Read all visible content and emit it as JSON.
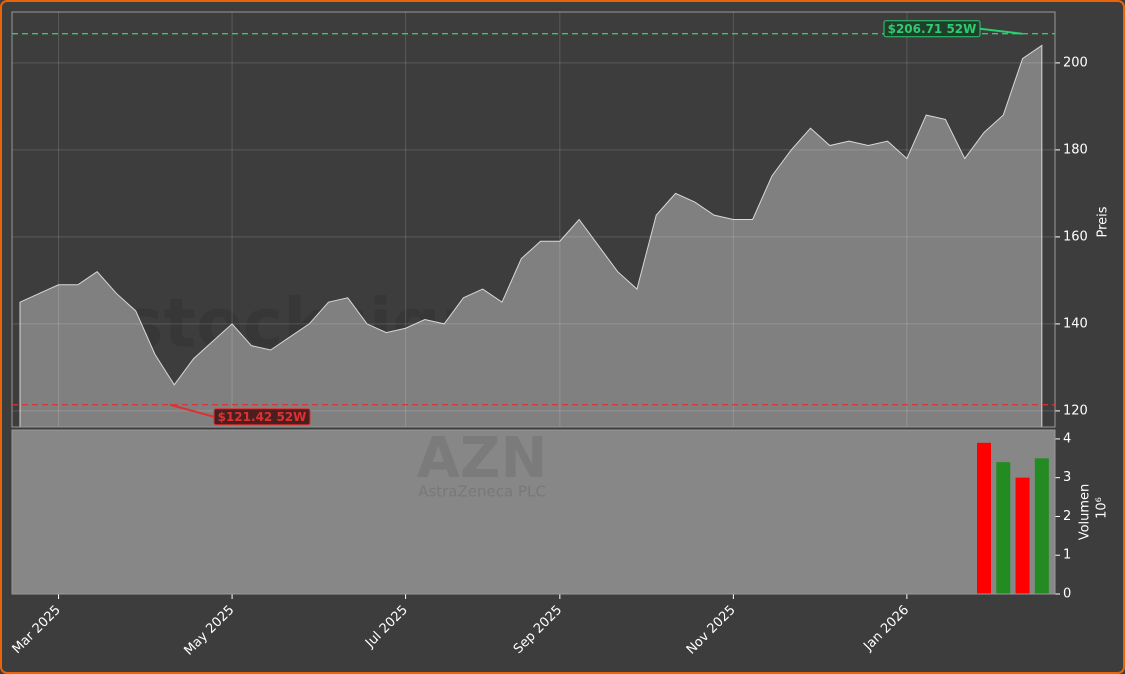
{
  "chart_data": [
    {
      "type": "area",
      "watermark": "stocksignale.trade",
      "ticker": "AZN",
      "company": "AstraZeneca PLC",
      "y_label": "Preis",
      "categories": [
        null,
        null,
        "Mar 2025",
        null,
        null,
        null,
        null,
        null,
        null,
        null,
        null,
        "May 2025",
        null,
        null,
        null,
        null,
        null,
        null,
        null,
        null,
        "Jul 2025",
        null,
        null,
        null,
        null,
        null,
        null,
        null,
        "Sep 2025",
        null,
        null,
        null,
        null,
        null,
        null,
        null,
        null,
        "Nov 2025",
        null,
        null,
        null,
        null,
        null,
        null,
        null,
        null,
        "Jan 2026",
        null,
        null,
        null,
        null,
        null,
        null,
        null
      ],
      "series": [
        {
          "name": "AZN",
          "color": "#808080",
          "values": [
            145,
            147,
            149,
            149,
            152,
            147,
            143,
            133,
            126,
            132,
            136,
            140,
            135,
            134,
            137,
            140,
            145,
            146,
            140,
            138,
            139,
            141,
            140,
            146,
            148,
            145,
            155,
            159,
            159,
            164,
            158,
            152,
            148,
            165,
            170,
            168,
            165,
            164,
            164,
            174,
            180,
            185,
            181,
            182,
            181,
            182,
            178,
            188,
            187,
            178,
            184,
            188,
            201,
            204
          ]
        }
      ],
      "ylim": [
        116.3,
        211.7
      ],
      "yticks": [
        120,
        140,
        160,
        180,
        200
      ],
      "grid": true,
      "annotations": [
        {
          "value": 206.71,
          "label": "$206.71 52W",
          "color": "#2ecc71"
        },
        {
          "value": 121.42,
          "label": "$121.42 52W",
          "color": "#e03030"
        }
      ]
    },
    {
      "type": "bar",
      "y_label": "Volumen",
      "scale_label": "10⁶",
      "categories": [
        null,
        null,
        "Mar 2025",
        null,
        null,
        null,
        null,
        null,
        null,
        null,
        null,
        "May 2025",
        null,
        null,
        null,
        null,
        null,
        null,
        null,
        null,
        "Jul 2025",
        null,
        null,
        null,
        null,
        null,
        null,
        null,
        "Sep 2025",
        null,
        null,
        null,
        null,
        null,
        null,
        null,
        null,
        "Nov 2025",
        null,
        null,
        null,
        null,
        null,
        null,
        null,
        null,
        "Jan 2026",
        null,
        null,
        null,
        null,
        null,
        null,
        null
      ],
      "series": [
        {
          "name": "Volumen",
          "values": [
            0,
            0,
            0,
            0,
            0,
            0,
            0,
            0,
            0,
            0,
            0,
            0,
            0,
            0,
            0,
            0,
            0,
            0,
            0,
            0,
            0,
            0,
            0,
            0,
            0,
            0,
            0,
            0,
            0,
            0,
            0,
            0,
            0,
            0,
            0,
            0,
            0,
            0,
            0,
            0,
            0,
            0,
            0,
            0,
            0,
            0,
            0,
            0,
            0,
            0,
            3.9,
            3.4,
            3.0,
            3.5
          ],
          "colors": [
            "#ff0000",
            "#ff0000",
            "#ff0000",
            "#ff0000",
            "#ff0000",
            "#ff0000",
            "#ff0000",
            "#ff0000",
            "#ff0000",
            "#ff0000",
            "#ff0000",
            "#ff0000",
            "#ff0000",
            "#ff0000",
            "#ff0000",
            "#ff0000",
            "#ff0000",
            "#ff0000",
            "#ff0000",
            "#ff0000",
            "#ff0000",
            "#ff0000",
            "#ff0000",
            "#ff0000",
            "#ff0000",
            "#ff0000",
            "#ff0000",
            "#ff0000",
            "#ff0000",
            "#ff0000",
            "#ff0000",
            "#ff0000",
            "#ff0000",
            "#ff0000",
            "#ff0000",
            "#ff0000",
            "#ff0000",
            "#ff0000",
            "#ff0000",
            "#ff0000",
            "#ff0000",
            "#ff0000",
            "#ff0000",
            "#ff0000",
            "#ff0000",
            "#ff0000",
            "#ff0000",
            "#ff0000",
            "#ff0000",
            "#ff0000",
            "#ff0000",
            "#228b22",
            "#ff0000",
            "#228b22"
          ]
        }
      ],
      "ylim": [
        0,
        4.23
      ],
      "yticks": [
        0,
        1,
        2,
        3,
        4
      ]
    }
  ]
}
